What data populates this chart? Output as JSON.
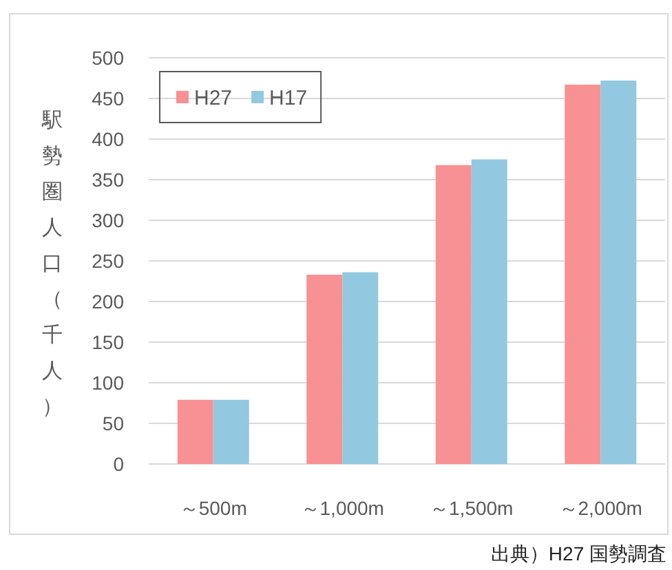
{
  "chart_data": {
    "type": "bar",
    "ylabel": "駅勢圏人口（千人）",
    "categories": [
      "～500m",
      "～1,000m",
      "～1,500m",
      "～2,000m"
    ],
    "series": [
      {
        "name": "H27",
        "color": "#f89193",
        "values": [
          79,
          233,
          368,
          467
        ]
      },
      {
        "name": "H17",
        "color": "#92c9e0",
        "values": [
          79,
          236,
          375,
          472
        ]
      }
    ],
    "ylim": [
      0,
      500
    ],
    "yticks": [
      0,
      50,
      100,
      150,
      200,
      250,
      300,
      350,
      400,
      450,
      500
    ],
    "grid": "y",
    "legend": "top left",
    "annotations": [
      "出典）H27 国勢調査"
    ]
  }
}
